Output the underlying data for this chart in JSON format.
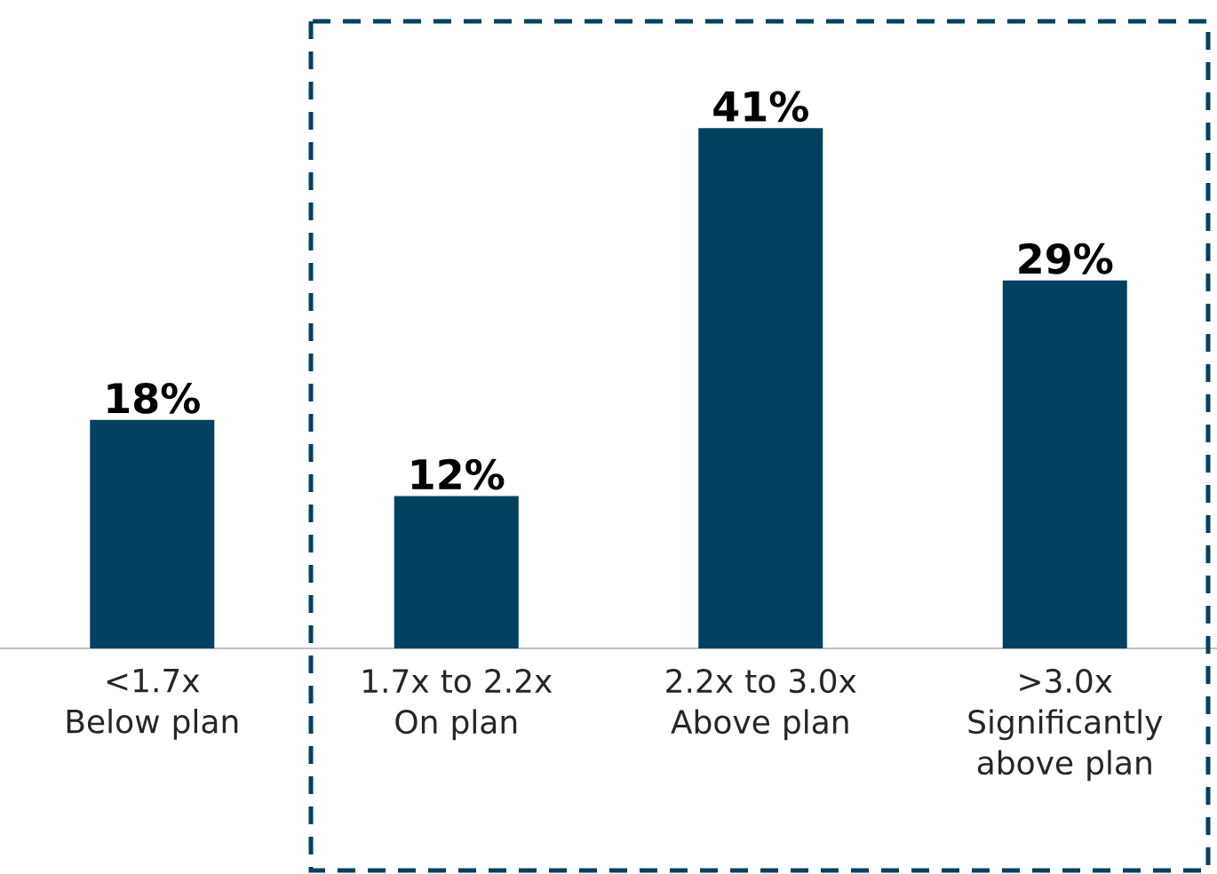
{
  "chart_data": {
    "type": "bar",
    "categories": [
      "<1.7x Below plan",
      "1.7x to 2.2x On plan",
      "2.2x to 3.0x Above plan",
      ">3.0x Significantly above plan"
    ],
    "values": [
      18,
      12,
      41,
      29
    ],
    "value_labels": [
      "18%",
      "12%",
      "41%",
      "29%"
    ],
    "color": "#02415f"
  }
}
